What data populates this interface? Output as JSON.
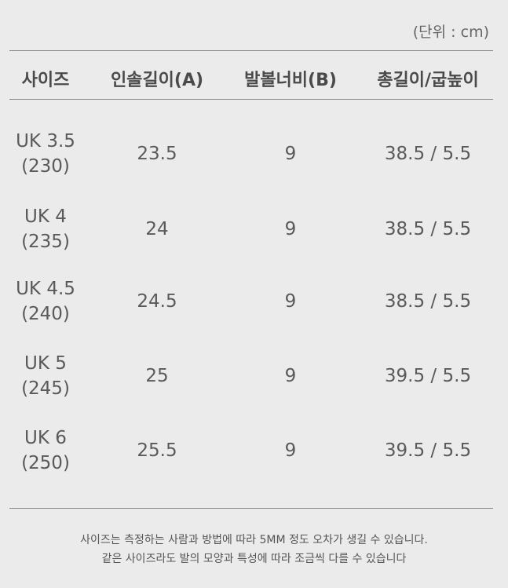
{
  "unit_label": "(단위 : cm)",
  "headers": [
    "사이즈",
    "인솔길이(A)",
    "발볼너비(B)",
    "총길이/굽높이"
  ],
  "rows": [
    {
      "size": "UK 3.5",
      "kor": "(230)",
      "insole": "23.5",
      "width": "9",
      "total": "38.5 / 5.5"
    },
    {
      "size": "UK 4",
      "kor": "(235)",
      "insole": "24",
      "width": "9",
      "total": "38.5 / 5.5"
    },
    {
      "size": "UK 4.5",
      "kor": "(240)",
      "insole": "24.5",
      "width": "9",
      "total": "38.5 / 5.5"
    },
    {
      "size": "UK 5",
      "kor": "(245)",
      "insole": "25",
      "width": "9",
      "total": "39.5 / 5.5"
    },
    {
      "size": "UK 6",
      "kor": "(250)",
      "insole": "25.5",
      "width": "9",
      "total": "39.5 / 5.5"
    }
  ],
  "notes": [
    "사이즈는 측정하는 사람과 방법에 따라 5MM 정도 오차가 생길 수 있습니다.",
    "같은 사이즈라도 발의 모양과  특성에 따라 조금씩 다를 수 있습니다"
  ]
}
